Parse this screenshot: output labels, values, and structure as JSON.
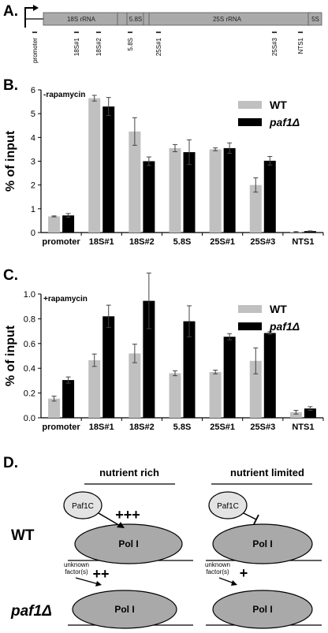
{
  "panels": {
    "a": "A.",
    "b": "B.",
    "c": "C.",
    "d": "D."
  },
  "gene_map": {
    "regions": [
      "18S rRNA",
      "5.8S",
      "25S rRNA",
      "5S"
    ],
    "probes": [
      "promoter",
      "18S#1",
      "18S#2",
      "5.8S",
      "25S#1",
      "25S#3",
      "NTS1"
    ]
  },
  "chart_data": [
    {
      "type": "bar",
      "panel": "B.",
      "condition": "-rapamycin",
      "ylabel": "% of input",
      "ylim": [
        0,
        6
      ],
      "yticks": [
        "0",
        "1",
        "2",
        "3",
        "4",
        "5",
        "6"
      ],
      "categories": [
        "promoter",
        "18S#1",
        "18S#2",
        "5.8S",
        "25S#1",
        "25S#3",
        "NTS1"
      ],
      "legend": [
        "WT",
        "paf1Δ"
      ],
      "legend_position": "top-right",
      "series": [
        {
          "name": "WT",
          "color": "#c0c0c0",
          "values": [
            0.68,
            5.65,
            4.25,
            3.55,
            3.5,
            2.0,
            0.03
          ],
          "errors": [
            0.02,
            0.12,
            0.58,
            0.15,
            0.06,
            0.3,
            0.01
          ]
        },
        {
          "name": "paf1Δ",
          "color": "#000000",
          "values": [
            0.72,
            5.3,
            3.0,
            3.38,
            3.55,
            3.02,
            0.06
          ],
          "errors": [
            0.08,
            0.38,
            0.18,
            0.52,
            0.22,
            0.18,
            0.01
          ]
        }
      ]
    },
    {
      "type": "bar",
      "panel": "C.",
      "condition": "+rapamycin",
      "ylabel": "% of input",
      "ylim": [
        0,
        1.0
      ],
      "yticks": [
        "0.0",
        "0.2",
        "0.4",
        "0.6",
        "0.8",
        "1.0"
      ],
      "categories": [
        "promoter",
        "18S#1",
        "18S#2",
        "5.8S",
        "25S#1",
        "25S#3",
        "NTS1"
      ],
      "legend": [
        "WT",
        "paf1Δ"
      ],
      "legend_position": "top-right",
      "series": [
        {
          "name": "WT",
          "color": "#c0c0c0",
          "values": [
            0.155,
            0.465,
            0.52,
            0.36,
            0.37,
            0.46,
            0.045
          ],
          "errors": [
            0.02,
            0.05,
            0.075,
            0.02,
            0.015,
            0.105,
            0.015
          ]
        },
        {
          "name": "paf1Δ",
          "color": "#000000",
          "values": [
            0.305,
            0.82,
            0.945,
            0.78,
            0.655,
            0.685,
            0.075
          ],
          "errors": [
            0.025,
            0.09,
            0.225,
            0.125,
            0.025,
            0.01,
            0.015
          ]
        }
      ]
    }
  ],
  "model": {
    "col_rich": "nutrient rich",
    "col_limited": "nutrient limited",
    "row_wt": "WT",
    "row_mutant": "paf1Δ",
    "paf1c": "Paf1C",
    "pol1": "Pol I",
    "unknown_line1": "unknown",
    "unknown_line2": "factor(s)",
    "wt_rich_signal": "+++",
    "mutant_rich_signal": "++",
    "mutant_limited_signal": "+"
  }
}
